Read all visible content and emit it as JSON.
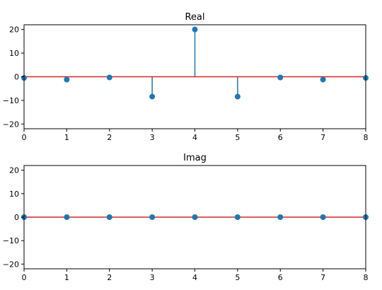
{
  "chart_data": [
    {
      "type": "stem",
      "title": "Real",
      "xlabel": "",
      "ylabel": "",
      "x": [
        0,
        1,
        2,
        3,
        4,
        5,
        6,
        7,
        8
      ],
      "y": [
        -0.5,
        -1.2,
        -0.3,
        -8.4,
        20.0,
        -8.4,
        -0.3,
        -1.2,
        -0.5
      ],
      "xlim": [
        0,
        8
      ],
      "ylim": [
        -22,
        22
      ],
      "xticks": [
        0,
        1,
        2,
        3,
        4,
        5,
        6,
        7,
        8
      ],
      "yticks": [
        -20,
        -10,
        0,
        10,
        20
      ],
      "grid": false,
      "colors": {
        "stem": "#1f77b4",
        "baseline": "#d62728"
      }
    },
    {
      "type": "stem",
      "title": "Imag",
      "xlabel": "",
      "ylabel": "",
      "x": [
        0,
        1,
        2,
        3,
        4,
        5,
        6,
        7,
        8
      ],
      "y": [
        0,
        0,
        0,
        0,
        0,
        0,
        0,
        0,
        0
      ],
      "xlim": [
        0,
        8
      ],
      "ylim": [
        -22,
        22
      ],
      "xticks": [
        0,
        1,
        2,
        3,
        4,
        5,
        6,
        7,
        8
      ],
      "yticks": [
        -20,
        -10,
        0,
        10,
        20
      ],
      "grid": false,
      "colors": {
        "stem": "#1f77b4",
        "baseline": "#d62728"
      }
    }
  ]
}
